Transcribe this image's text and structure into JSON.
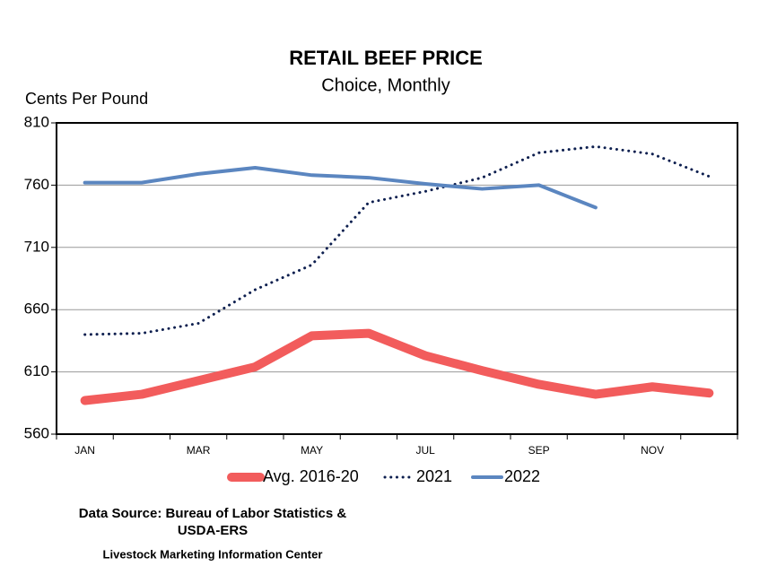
{
  "chart_data": {
    "type": "line",
    "title": "RETAIL BEEF PRICE",
    "subtitle": "Choice, Monthly",
    "y_label": "Cents Per Pound",
    "categories": [
      "JAN",
      null,
      "MAR",
      null,
      "MAY",
      null,
      "JUL",
      null,
      "SEP",
      null,
      "NOV",
      null
    ],
    "series": [
      {
        "name": "Avg. 2016-20",
        "color": "#f25c5c",
        "width": 10,
        "dash": "solid",
        "values": [
          587,
          592,
          603,
          614,
          639,
          641,
          623,
          611,
          600,
          592,
          598,
          593
        ]
      },
      {
        "name": "2021",
        "color": "#0d1f4f",
        "width": 3,
        "dash": "dotted",
        "values": [
          640,
          641,
          649,
          676,
          696,
          746,
          755,
          766,
          786,
          791,
          785,
          767
        ]
      },
      {
        "name": "2022",
        "color": "#5b86c0",
        "width": 4,
        "dash": "solid",
        "values": [
          762,
          762,
          769,
          774,
          768,
          766,
          761,
          757,
          760,
          742,
          null,
          null
        ]
      }
    ],
    "ylim": [
      560,
      810
    ],
    "yticks": [
      560,
      610,
      660,
      710,
      760,
      810
    ],
    "grid": true,
    "legend": "bottom",
    "source": [
      "Data Source: Bureau of Labor Statistics &",
      "USDA-ERS"
    ],
    "credit": "Livestock Marketing Information Center"
  }
}
